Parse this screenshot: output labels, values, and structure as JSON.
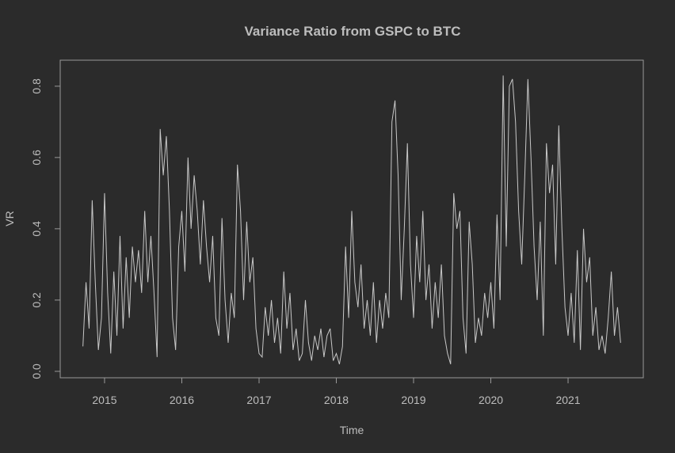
{
  "chart_data": {
    "type": "line",
    "title": "Variance Ratio from GSPC to BTC",
    "x_label": "Time",
    "y_label": "VR",
    "x": [
      2014.72,
      2014.76,
      2014.8,
      2014.84,
      2014.88,
      2014.92,
      2014.96,
      2015.0,
      2015.04,
      2015.08,
      2015.12,
      2015.16,
      2015.2,
      2015.24,
      2015.28,
      2015.32,
      2015.36,
      2015.4,
      2015.44,
      2015.48,
      2015.52,
      2015.56,
      2015.6,
      2015.64,
      2015.68,
      2015.72,
      2015.76,
      2015.8,
      2015.84,
      2015.88,
      2015.92,
      2015.96,
      2016.0,
      2016.04,
      2016.08,
      2016.12,
      2016.16,
      2016.2,
      2016.24,
      2016.28,
      2016.32,
      2016.36,
      2016.4,
      2016.44,
      2016.48,
      2016.52,
      2016.56,
      2016.6,
      2016.64,
      2016.68,
      2016.72,
      2016.76,
      2016.8,
      2016.84,
      2016.88,
      2016.92,
      2016.96,
      2017.0,
      2017.04,
      2017.08,
      2017.12,
      2017.16,
      2017.2,
      2017.24,
      2017.28,
      2017.32,
      2017.36,
      2017.4,
      2017.44,
      2017.48,
      2017.52,
      2017.56,
      2017.6,
      2017.64,
      2017.68,
      2017.72,
      2017.76,
      2017.8,
      2017.84,
      2017.88,
      2017.92,
      2017.96,
      2018.0,
      2018.04,
      2018.08,
      2018.12,
      2018.16,
      2018.2,
      2018.24,
      2018.28,
      2018.32,
      2018.36,
      2018.4,
      2018.44,
      2018.48,
      2018.52,
      2018.56,
      2018.6,
      2018.64,
      2018.68,
      2018.72,
      2018.76,
      2018.8,
      2018.84,
      2018.88,
      2018.92,
      2018.96,
      2019.0,
      2019.04,
      2019.08,
      2019.12,
      2019.16,
      2019.2,
      2019.24,
      2019.28,
      2019.32,
      2019.36,
      2019.4,
      2019.44,
      2019.48,
      2019.52,
      2019.56,
      2019.6,
      2019.64,
      2019.68,
      2019.72,
      2019.76,
      2019.8,
      2019.84,
      2019.88,
      2019.92,
      2019.96,
      2020.0,
      2020.04,
      2020.08,
      2020.12,
      2020.16,
      2020.2,
      2020.24,
      2020.28,
      2020.32,
      2020.36,
      2020.4,
      2020.44,
      2020.48,
      2020.52,
      2020.56,
      2020.6,
      2020.64,
      2020.68,
      2020.72,
      2020.76,
      2020.8,
      2020.84,
      2020.88,
      2020.92,
      2020.96,
      2021.0,
      2021.04,
      2021.08,
      2021.12,
      2021.16,
      2021.2,
      2021.24,
      2021.28,
      2021.32,
      2021.36,
      2021.4,
      2021.44,
      2021.48,
      2021.52,
      2021.56,
      2021.6,
      2021.64,
      2021.68
    ],
    "values": [
      0.07,
      0.25,
      0.12,
      0.48,
      0.25,
      0.06,
      0.15,
      0.5,
      0.22,
      0.05,
      0.28,
      0.1,
      0.38,
      0.12,
      0.32,
      0.15,
      0.35,
      0.25,
      0.34,
      0.22,
      0.45,
      0.25,
      0.38,
      0.22,
      0.04,
      0.68,
      0.55,
      0.66,
      0.45,
      0.15,
      0.06,
      0.35,
      0.45,
      0.28,
      0.6,
      0.4,
      0.55,
      0.45,
      0.3,
      0.48,
      0.35,
      0.25,
      0.38,
      0.15,
      0.1,
      0.43,
      0.2,
      0.08,
      0.22,
      0.15,
      0.58,
      0.45,
      0.2,
      0.42,
      0.25,
      0.32,
      0.12,
      0.05,
      0.04,
      0.18,
      0.1,
      0.2,
      0.08,
      0.15,
      0.05,
      0.28,
      0.12,
      0.22,
      0.06,
      0.12,
      0.03,
      0.05,
      0.2,
      0.08,
      0.03,
      0.1,
      0.06,
      0.12,
      0.04,
      0.1,
      0.12,
      0.03,
      0.05,
      0.02,
      0.07,
      0.35,
      0.15,
      0.45,
      0.25,
      0.18,
      0.3,
      0.12,
      0.2,
      0.1,
      0.25,
      0.08,
      0.2,
      0.12,
      0.22,
      0.15,
      0.7,
      0.76,
      0.55,
      0.2,
      0.4,
      0.64,
      0.3,
      0.15,
      0.38,
      0.25,
      0.45,
      0.2,
      0.3,
      0.12,
      0.25,
      0.15,
      0.3,
      0.1,
      0.05,
      0.02,
      0.5,
      0.4,
      0.45,
      0.15,
      0.05,
      0.42,
      0.3,
      0.08,
      0.15,
      0.1,
      0.22,
      0.15,
      0.25,
      0.12,
      0.44,
      0.2,
      0.83,
      0.35,
      0.8,
      0.82,
      0.7,
      0.45,
      0.3,
      0.55,
      0.82,
      0.6,
      0.35,
      0.2,
      0.42,
      0.1,
      0.64,
      0.5,
      0.58,
      0.3,
      0.69,
      0.4,
      0.18,
      0.1,
      0.22,
      0.08,
      0.34,
      0.06,
      0.4,
      0.25,
      0.32,
      0.1,
      0.18,
      0.06,
      0.1,
      0.05,
      0.15,
      0.28,
      0.1,
      0.18,
      0.08
    ],
    "color": "#c8c8c8",
    "xlim": [
      2014.426,
      2021.974
    ],
    "xticks": [
      2015,
      2016,
      2017,
      2018,
      2019,
      2020,
      2021
    ],
    "ylim": [
      -0.018,
      0.873
    ],
    "yticks": [
      {
        "value": 0,
        "label": "0.0"
      },
      0.2,
      0.4,
      0.6,
      0.8
    ]
  }
}
